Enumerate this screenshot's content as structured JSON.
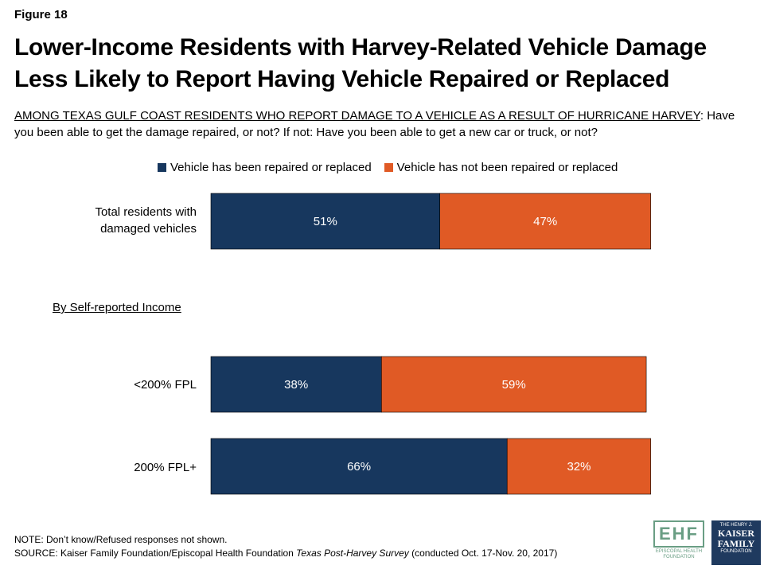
{
  "figure_label": "Figure 18",
  "title": "Lower-Income Residents with Harvey-Related Vehicle Damage Less Likely to Report Having Vehicle Repaired or Replaced",
  "subtitle_underlined": "AMONG TEXAS GULF COAST RESIDENTS WHO REPORT DAMAGE TO A VEHICLE AS A RESULT OF HURRICANE HARVEY",
  "subtitle_rest": ": Have you been able to get the damage repaired, or not? If not: Have you been able to get a new car or truck, or not?",
  "group_label": "By Self-reported Income",
  "note": "NOTE: Don’t know/Refused responses not shown.",
  "source_prefix": "SOURCE: Kaiser Family Foundation/Episcopal Health Foundation ",
  "source_italic": "Texas Post-Harvey Survey",
  "source_suffix": " (conducted Oct. 17-Nov. 20, 2017)",
  "logos": {
    "ehf_mark": "EHF",
    "ehf_text": "EPISCOPAL HEALTH FOUNDATION",
    "kff_top": "THE HENRY J.",
    "kff_mid1": "KAISER",
    "kff_mid2": "FAMILY",
    "kff_bottom": "FOUNDATION"
  },
  "chart_data": {
    "type": "bar",
    "orientation": "horizontal",
    "stacked": true,
    "categories": [
      "Total residents with damaged vehicles",
      "<200% FPL",
      "200% FPL+"
    ],
    "category_lines": [
      [
        "Total residents with",
        "damaged vehicles"
      ],
      [
        "<200% FPL"
      ],
      [
        "200% FPL+"
      ]
    ],
    "series": [
      {
        "name": "Vehicle has been repaired or replaced",
        "color": "#17375e",
        "values": [
          51,
          38,
          66
        ]
      },
      {
        "name": "Vehicle has not been repaired or replaced",
        "color": "#e05a25",
        "values": [
          47,
          59,
          32
        ]
      }
    ],
    "value_suffix": "%",
    "xlim": [
      0,
      100
    ],
    "legend_position": "top",
    "grid": false
  }
}
